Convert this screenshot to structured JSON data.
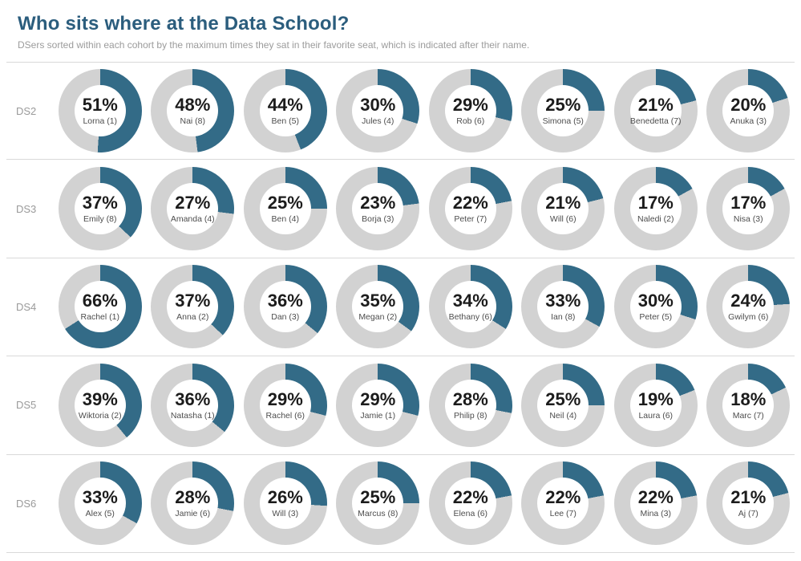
{
  "title": "Who sits where at the Data School?",
  "subtitle": "DSers sorted within each cohort by the maximum times they sat in their favorite seat, which is indicated after their name.",
  "colors": {
    "title": "#2b5d7d",
    "subtitle": "#9b9b9b",
    "cohort_label": "#9a9a9a",
    "accent": "#336b87",
    "track": "#d2d2d2",
    "separator": "#d9d9d9",
    "percent_text": "#1c1c1c",
    "name_text": "#4d4d4d"
  },
  "chart_data": {
    "type": "pie",
    "subtype": "donut-grid",
    "unit": "percent",
    "start_angle": "top",
    "direction": "clockwise",
    "legend": "none",
    "rows": [
      {
        "cohort": "DS2",
        "items": [
          {
            "percent": 51,
            "label": "Lorna (1)"
          },
          {
            "percent": 48,
            "label": "Nai (8)"
          },
          {
            "percent": 44,
            "label": "Ben (5)"
          },
          {
            "percent": 30,
            "label": "Jules (4)"
          },
          {
            "percent": 29,
            "label": "Rob (6)"
          },
          {
            "percent": 25,
            "label": "Simona (5)"
          },
          {
            "percent": 21,
            "label": "Benedetta (7)"
          },
          {
            "percent": 20,
            "label": "Anuka (3)"
          }
        ]
      },
      {
        "cohort": "DS3",
        "items": [
          {
            "percent": 37,
            "label": "Emily (8)"
          },
          {
            "percent": 27,
            "label": "Amanda (4)"
          },
          {
            "percent": 25,
            "label": "Ben (4)"
          },
          {
            "percent": 23,
            "label": "Borja (3)"
          },
          {
            "percent": 22,
            "label": "Peter (7)"
          },
          {
            "percent": 21,
            "label": "Will (6)"
          },
          {
            "percent": 17,
            "label": "Naledi (2)"
          },
          {
            "percent": 17,
            "label": "Nisa (3)"
          }
        ]
      },
      {
        "cohort": "DS4",
        "items": [
          {
            "percent": 66,
            "label": "Rachel (1)"
          },
          {
            "percent": 37,
            "label": "Anna (2)"
          },
          {
            "percent": 36,
            "label": "Dan (3)"
          },
          {
            "percent": 35,
            "label": "Megan (2)"
          },
          {
            "percent": 34,
            "label": "Bethany (6)"
          },
          {
            "percent": 33,
            "label": "Ian (8)"
          },
          {
            "percent": 30,
            "label": "Peter (5)"
          },
          {
            "percent": 24,
            "label": "Gwilym (6)"
          }
        ]
      },
      {
        "cohort": "DS5",
        "items": [
          {
            "percent": 39,
            "label": "Wiktoria (2)"
          },
          {
            "percent": 36,
            "label": "Natasha (1)"
          },
          {
            "percent": 29,
            "label": "Rachel (6)"
          },
          {
            "percent": 29,
            "label": "Jamie (1)"
          },
          {
            "percent": 28,
            "label": "Philip (8)"
          },
          {
            "percent": 25,
            "label": "Neil (4)"
          },
          {
            "percent": 19,
            "label": "Laura (6)"
          },
          {
            "percent": 18,
            "label": "Marc (7)"
          }
        ]
      },
      {
        "cohort": "DS6",
        "items": [
          {
            "percent": 33,
            "label": "Alex (5)"
          },
          {
            "percent": 28,
            "label": "Jamie (6)"
          },
          {
            "percent": 26,
            "label": "Will (3)"
          },
          {
            "percent": 25,
            "label": "Marcus (8)"
          },
          {
            "percent": 22,
            "label": "Elena (6)"
          },
          {
            "percent": 22,
            "label": "Lee (7)"
          },
          {
            "percent": 22,
            "label": "Mina (3)"
          },
          {
            "percent": 21,
            "label": "Aj (7)"
          }
        ]
      }
    ]
  }
}
